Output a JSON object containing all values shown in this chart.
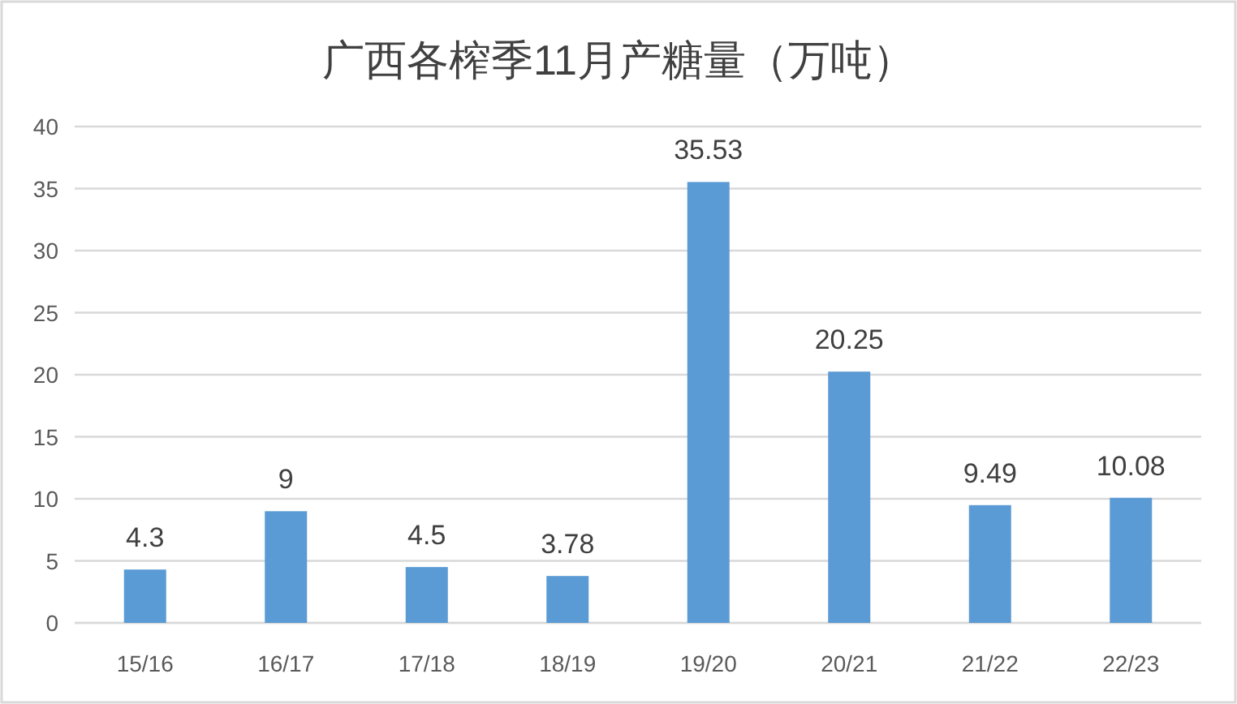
{
  "chart_data": {
    "type": "bar",
    "title": "广西各榨季11月产糖量（万吨）",
    "categories": [
      "15/16",
      "16/17",
      "17/18",
      "18/19",
      "19/20",
      "20/21",
      "21/22",
      "22/23"
    ],
    "values": [
      4.3,
      9,
      4.5,
      3.78,
      35.53,
      20.25,
      9.49,
      10.08
    ],
    "color": "#5b9bd5",
    "ylim": [
      0,
      40
    ],
    "yticks": [
      0,
      5,
      10,
      15,
      20,
      25,
      30,
      35,
      40
    ],
    "grid": "y",
    "data_labels": true
  }
}
